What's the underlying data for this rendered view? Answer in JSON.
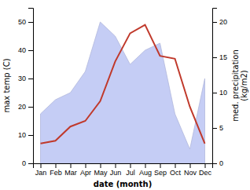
{
  "chart_data": {
    "type": "line",
    "categories": [
      "Jan",
      "Feb",
      "Mar",
      "Apr",
      "May",
      "Jun",
      "Jul",
      "Aug",
      "Sep",
      "Oct",
      "Nov",
      "Dec"
    ],
    "xlabel": "date (month)",
    "ylabel": "max temp (C)",
    "y2label": "med. precipitation\n(kg/m2)",
    "ylim": [
      0,
      55
    ],
    "yticks": [
      0,
      10,
      20,
      30,
      40,
      50
    ],
    "y2lim": [
      0,
      22
    ],
    "y2ticks": [
      0,
      5,
      10,
      15,
      20
    ],
    "grid": false,
    "series": [
      {
        "type": "area",
        "axis": "y2",
        "color": "#c5cdf5",
        "values": [
          7.0,
          9.0,
          10.0,
          13.0,
          20.0,
          18.0,
          14.0,
          16.0,
          17.0,
          7.0,
          2.0,
          12.0
        ]
      },
      {
        "type": "line",
        "color": "#c0392b",
        "values": [
          7.0,
          8.0,
          13.0,
          15.0,
          22.0,
          36.0,
          46.0,
          49.0,
          38.0,
          37.0,
          20.0,
          7.0
        ]
      }
    ]
  }
}
